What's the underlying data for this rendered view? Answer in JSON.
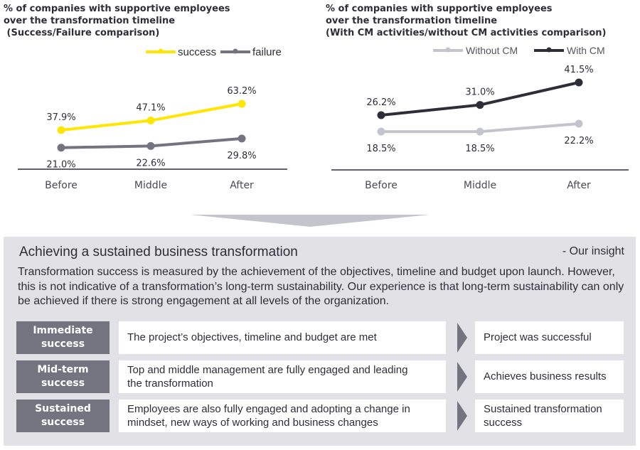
{
  "chart_data": [
    {
      "type": "line",
      "title": "% of companies with supportive employees\nover the transformation timeline\n (Success/Failure comparison)",
      "categories": [
        "Before",
        "Middle",
        "After"
      ],
      "series": [
        {
          "name": "success",
          "color": "#ffe600",
          "values": [
            37.9,
            47.1,
            63.2
          ],
          "labels": [
            "37.9%",
            "47.1%",
            "63.2%"
          ],
          "label_position": "above"
        },
        {
          "name": "failure",
          "color": "#747480",
          "values": [
            21.0,
            22.6,
            29.8
          ],
          "labels": [
            "21.0%",
            "22.6%",
            "29.8%"
          ],
          "label_position": "below"
        }
      ],
      "legend": "top-right",
      "grid": false,
      "ylim": [
        0,
        75
      ]
    },
    {
      "type": "line",
      "title": "% of companies with supportive employees\nover the transformation timeline\n(With CM activities/without CM activities comparison)",
      "categories": [
        "Before",
        "Middle",
        "After"
      ],
      "series": [
        {
          "name": "Without CM",
          "color": "#c4c4cd",
          "values": [
            18.5,
            18.5,
            22.2
          ],
          "labels": [
            "18.5%",
            "18.5%",
            "22.2%"
          ],
          "label_position": "below"
        },
        {
          "name": "With CM",
          "color": "#2e2e38",
          "values": [
            26.2,
            31.0,
            41.5
          ],
          "labels": [
            "26.2%",
            "31.0%",
            "41.5%"
          ],
          "label_position": "above"
        }
      ],
      "legend": "top-right",
      "grid": false,
      "ylim": [
        0,
        50
      ]
    }
  ],
  "insight": {
    "title": "Achieving a sustained business transformation",
    "tag": "- Our insight",
    "body": "Transformation success is measured by the achievement of the objectives, timeline and budget upon launch. However, this is not indicative of a transformation’s long-term sustainability. Our experience is that long-term sustainability can only be achieved if there is strong engagement at all levels of the organization.",
    "rows": [
      {
        "label": [
          "Immediate",
          "success"
        ],
        "description": [
          "The project’s objectives, timeline and budget are met"
        ],
        "result": [
          "Project was successful"
        ]
      },
      {
        "label": [
          "Mid-term",
          "success"
        ],
        "description": [
          "Top and middle management are fully engaged and leading",
          "the transformation"
        ],
        "result": [
          "Achieves business results"
        ]
      },
      {
        "label": [
          "Sustained",
          "success"
        ],
        "description": [
          "Employees are also fully engaged and adopting a change in",
          "mindset, new ways of working and business changes"
        ],
        "result": [
          "Sustained transformation",
          "success"
        ]
      }
    ]
  },
  "colors": {
    "accent_yellow": "#ffe600",
    "dark": "#2e2e38",
    "mid_gray": "#747480",
    "light_gray": "#c4c4cd",
    "panel_bg": "#e2e1e6"
  }
}
